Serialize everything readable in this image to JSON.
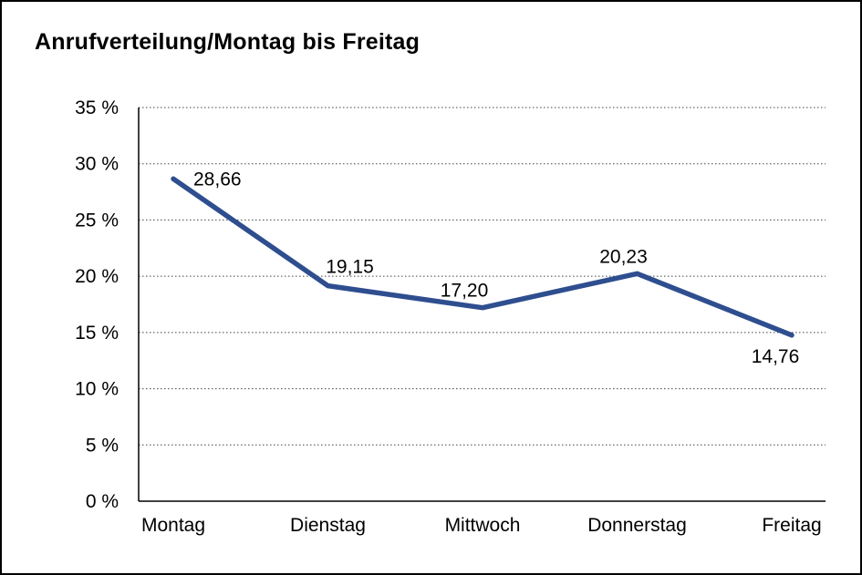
{
  "chart_data": {
    "type": "line",
    "title": "Anrufverteilung/Montag bis Freitag",
    "categories": [
      "Montag",
      "Dienstag",
      "Mittwoch",
      "Donnerstag",
      "Freitag"
    ],
    "values": [
      28.66,
      19.15,
      17.2,
      20.23,
      14.76
    ],
    "value_labels": [
      "28,66",
      "19,15",
      "17,20",
      "20,23",
      "14,76"
    ],
    "y_ticks": [
      "35 %",
      "30 %",
      "25 %",
      "20 %",
      "15 %",
      "10 %",
      "5 %",
      "0 %"
    ],
    "ylim": [
      0,
      35
    ],
    "y_tick_step": 5,
    "xlabel": "",
    "ylabel": "",
    "grid": "horizontal-dotted",
    "legend": "none",
    "line_color": "#2e4e8f",
    "axis_color": "#000000",
    "background_color": "#ffffff"
  }
}
